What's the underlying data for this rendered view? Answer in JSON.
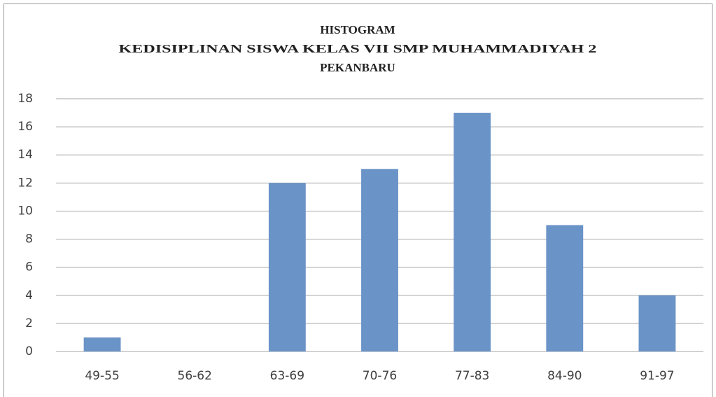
{
  "chart_data": {
    "type": "bar",
    "title": "HISTOGRAM",
    "subtitle": [
      "KEDISIPLINAN SISWA KELAS VII SMP MUHAMMADIYAH 2",
      "PEKANBARU"
    ],
    "categories": [
      "49-55",
      "56-62",
      "63-69",
      "70-76",
      "77-83",
      "84-90",
      "91-97"
    ],
    "values": [
      1,
      0,
      12,
      13,
      17,
      9,
      4
    ],
    "color": "#6a93c7",
    "ylim": [
      0,
      18
    ],
    "yticks": [
      0,
      2,
      4,
      6,
      8,
      10,
      12,
      14,
      16,
      18
    ],
    "grid": true
  }
}
